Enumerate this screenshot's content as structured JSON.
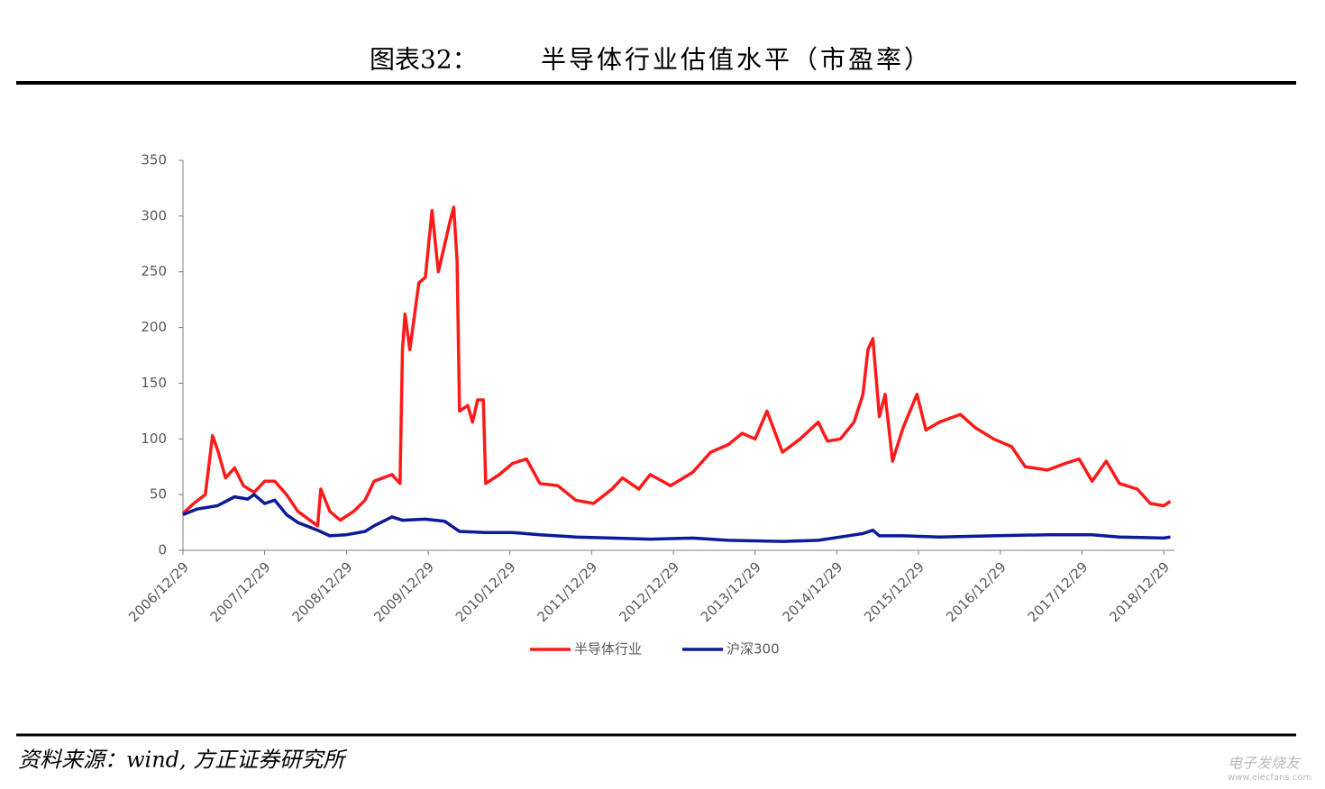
{
  "chart_data": {
    "type": "line",
    "title_label": "图表32：",
    "title": "半导体行业估值水平（市盈率）",
    "source": "资料来源：wind, 方正证券研究所",
    "watermark": [
      "电子发烧友",
      "www.elecfans.com"
    ],
    "legend": "bottom",
    "grid": false,
    "xlim": [
      "2006/12/29",
      "2019/02/15"
    ],
    "xticks": [
      "2006/12/29",
      "2007/12/29",
      "2008/12/29",
      "2009/12/29",
      "2010/12/29",
      "2011/12/29",
      "2012/12/29",
      "2013/12/29",
      "2014/12/29",
      "2015/12/29",
      "2016/12/29",
      "2017/12/29",
      "2018/12/29"
    ],
    "ylim": [
      0,
      350
    ],
    "yticks": [
      0,
      50,
      100,
      150,
      200,
      250,
      300,
      350
    ],
    "series": [
      {
        "name": "半导体行业",
        "color": "#ff1a1a",
        "x": [
          "2006/12/29",
          "2007/02/15",
          "2007/04/08",
          "2007/05/10",
          "2007/06/05",
          "2007/07/07",
          "2007/08/17",
          "2007/09/25",
          "2007/11/12",
          "2007/12/29",
          "2008/02/12",
          "2008/04/05",
          "2008/05/25",
          "2008/07/12",
          "2008/08/22",
          "2008/09/05",
          "2008/10/15",
          "2008/12/01",
          "2009/01/30",
          "2009/03/22",
          "2009/05/01",
          "2009/07/20",
          "2009/08/25",
          "2009/09/05",
          "2009/09/16",
          "2009/10/08",
          "2009/11/17",
          "2009/12/16",
          "2010/01/15",
          "2010/02/12",
          "2010/03/13",
          "2010/04/05",
          "2010/04/22",
          "2010/05/07",
          "2010/05/18",
          "2010/06/24",
          "2010/07/15",
          "2010/08/07",
          "2010/09/01",
          "2010/09/12",
          "2010/11/12",
          "2011/01/10",
          "2011/03/13",
          "2011/05/12",
          "2011/07/31",
          "2011/10/19",
          "2012/01/07",
          "2012/03/29",
          "2012/05/15",
          "2012/07/27",
          "2012/09/16",
          "2012/12/16",
          "2013/03/25",
          "2013/06/13",
          "2013/09/01",
          "2013/11/01",
          "2013/12/29",
          "2014/02/20",
          "2014/04/30",
          "2014/07/18",
          "2014/10/07",
          "2014/11/17",
          "2015/01/14",
          "2015/03/16",
          "2015/04/25",
          "2015/05/17",
          "2015/06/08",
          "2015/07/07",
          "2015/08/02",
          "2015/09/04",
          "2015/10/21",
          "2015/12/22",
          "2016/01/31",
          "2016/03/31",
          "2016/07/03",
          "2016/09/08",
          "2016/11/28",
          "2017/02/17",
          "2017/04/19",
          "2017/07/27",
          "2017/10/15",
          "2017/12/16",
          "2018/02/12",
          "2018/04/16",
          "2018/06/14",
          "2018/09/02",
          "2018/10/30",
          "2018/12/29",
          "2019/01/28"
        ],
        "values": [
          33,
          42,
          50,
          103,
          88,
          65,
          74,
          58,
          52,
          62,
          62,
          50,
          35,
          28,
          22,
          55,
          35,
          27,
          35,
          45,
          62,
          68,
          60,
          180,
          212,
          180,
          240,
          245,
          305,
          250,
          275,
          295,
          308,
          260,
          125,
          130,
          115,
          135,
          135,
          60,
          68,
          78,
          82,
          60,
          58,
          45,
          42,
          55,
          65,
          55,
          68,
          58,
          70,
          88,
          95,
          105,
          100,
          125,
          88,
          100,
          115,
          98,
          100,
          115,
          140,
          180,
          190,
          120,
          140,
          80,
          110,
          140,
          108,
          115,
          122,
          110,
          100,
          93,
          75,
          72,
          78,
          82,
          62,
          80,
          60,
          55,
          42,
          40,
          44
        ]
      },
      {
        "name": "沪深300",
        "color": "#0d1a99",
        "x": [
          "2006/12/29",
          "2007/03/01",
          "2007/06/01",
          "2007/08/17",
          "2007/10/15",
          "2007/11/12",
          "2007/12/29",
          "2008/02/12",
          "2008/04/05",
          "2008/05/25",
          "2008/08/22",
          "2008/10/15",
          "2008/12/29",
          "2009/03/22",
          "2009/05/01",
          "2009/07/20",
          "2009/09/05",
          "2009/12/16",
          "2010/03/13",
          "2010/05/18",
          "2010/09/12",
          "2011/01/10",
          "2011/05/12",
          "2011/10/19",
          "2012/03/29",
          "2012/09/16",
          "2013/03/25",
          "2013/09/01",
          "2014/04/30",
          "2014/10/07",
          "2015/01/14",
          "2015/04/25",
          "2015/06/08",
          "2015/07/07",
          "2015/10/21",
          "2016/03/31",
          "2016/11/28",
          "2017/07/27",
          "2018/02/12",
          "2018/06/14",
          "2018/12/29",
          "2019/01/28"
        ],
        "values": [
          32,
          37,
          40,
          48,
          46,
          50,
          42,
          45,
          32,
          25,
          18,
          13,
          14,
          17,
          22,
          30,
          27,
          28,
          26,
          17,
          16,
          16,
          14,
          12,
          11,
          10,
          11,
          9,
          8,
          9,
          12,
          15,
          18,
          13,
          13,
          12,
          13,
          14,
          14,
          12,
          11,
          12
        ]
      }
    ]
  }
}
